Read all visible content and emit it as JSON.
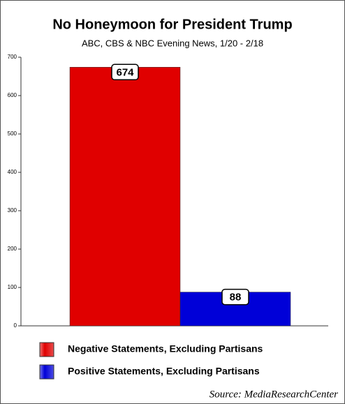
{
  "chart_data": {
    "type": "bar",
    "title": "No Honeymoon for President Trump",
    "subtitle": "ABC, CBS & NBC Evening News,  1/20 - 2/18",
    "categories": [
      null
    ],
    "series": [
      {
        "name": "Negative Statements, Excluding Partisans",
        "color": "#e00000",
        "values": [
          674
        ]
      },
      {
        "name": "Positive Statements, Excluding Partisans",
        "color": "#0000d8",
        "values": [
          88
        ]
      }
    ],
    "ylim": [
      0,
      700
    ],
    "yticks": [
      0,
      100,
      200,
      300,
      400,
      500,
      600,
      700
    ],
    "source": "Source: MediaResearchCenter"
  }
}
